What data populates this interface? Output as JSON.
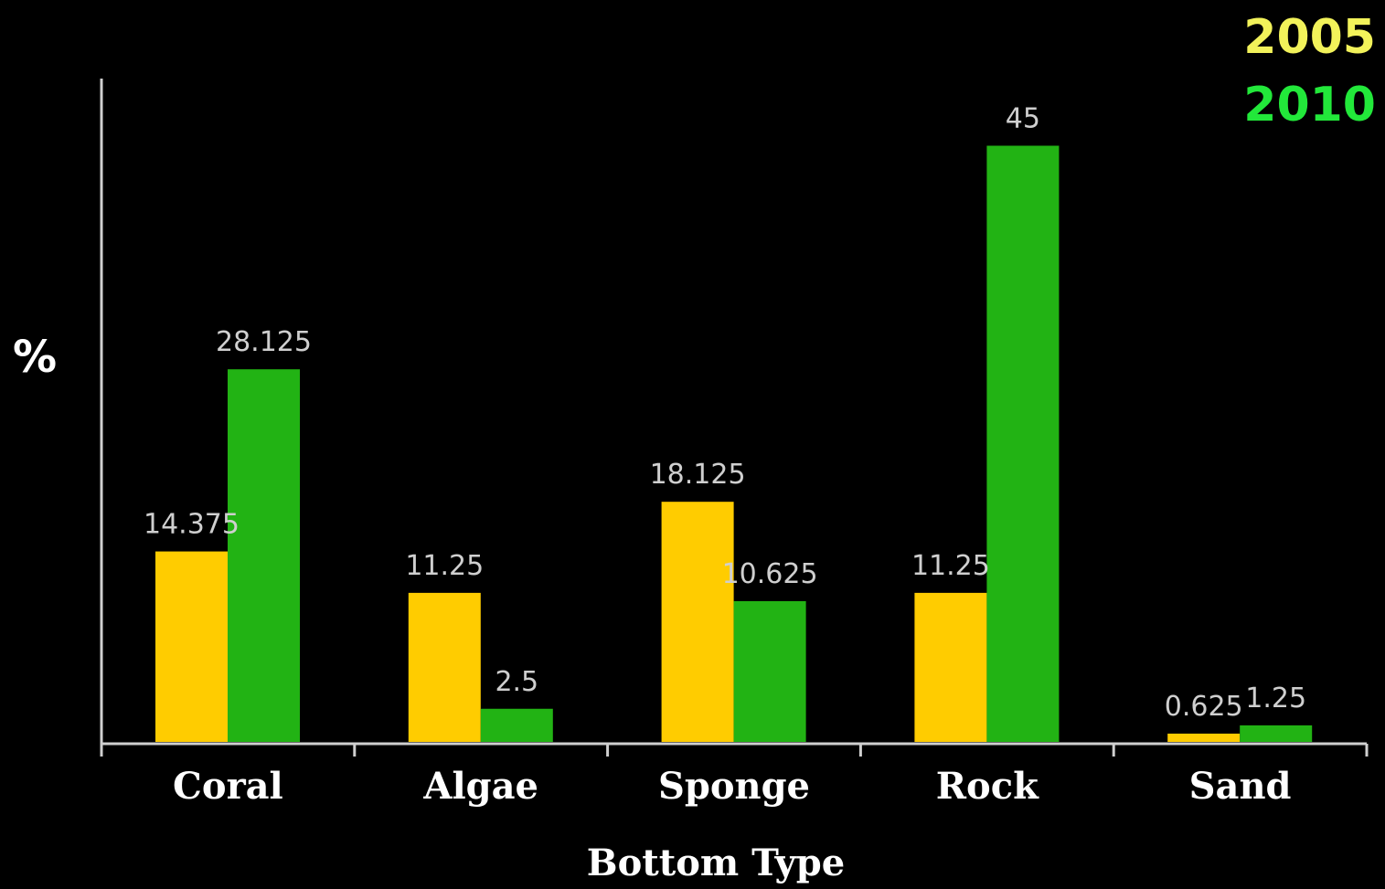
{
  "chart_data": {
    "type": "bar",
    "title": "",
    "xlabel": "Bottom Type",
    "ylabel": "%",
    "categories": [
      "Coral",
      "Algae",
      "Sponge",
      "Rock",
      "Sand"
    ],
    "series": [
      {
        "name": "2005",
        "color": "#FFCC00",
        "legend_color": "#F2F25A",
        "values": [
          14.375,
          11.25,
          18.125,
          11.25,
          0.625
        ],
        "labels": [
          "14.375",
          "11.25",
          "18.125",
          "11.25",
          "0.625"
        ]
      },
      {
        "name": "2010",
        "color": "#22B314",
        "legend_color": "#22E83A",
        "values": [
          28.125,
          2.5,
          10.625,
          45,
          1.25
        ],
        "labels": [
          "28.125",
          "2.5",
          "10.625",
          "45",
          "1.25"
        ]
      }
    ],
    "ylim": [
      0,
      50
    ],
    "grid": false,
    "legend_position": "top-right",
    "background": "#000000",
    "axis_color": "#CFCFCF"
  }
}
